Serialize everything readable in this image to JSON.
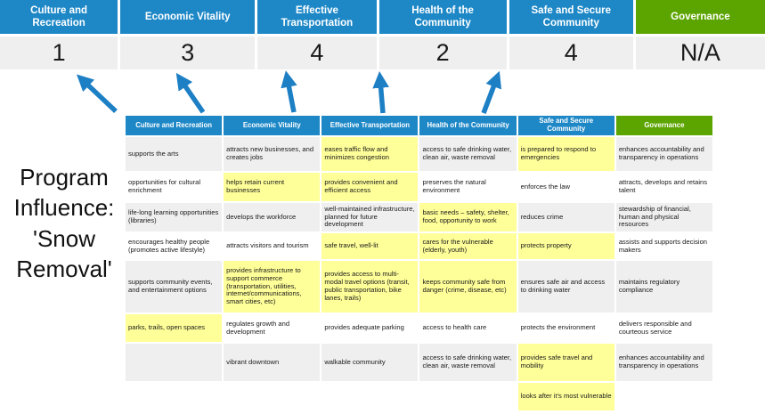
{
  "top_band": {
    "columns": [
      {
        "label": "Culture and Recreation",
        "score": "1",
        "theme": "blue"
      },
      {
        "label": "Economic Vitality",
        "score": "3",
        "theme": "blue"
      },
      {
        "label": "Effective Transportation",
        "score": "4",
        "theme": "blue"
      },
      {
        "label": "Health of the Community",
        "score": "2",
        "theme": "blue"
      },
      {
        "label": "Safe and Secure Community",
        "score": "4",
        "theme": "blue"
      },
      {
        "label": "Governance",
        "score": "N/A",
        "theme": "green"
      }
    ]
  },
  "program_label": "Program Influence: 'Snow Removal'",
  "matrix": {
    "headers": [
      {
        "label": "Culture and Recreation",
        "theme": "blue"
      },
      {
        "label": "Economic Vitality",
        "theme": "blue"
      },
      {
        "label": "Effective Transportation",
        "theme": "blue"
      },
      {
        "label": "Health of the Community",
        "theme": "blue"
      },
      {
        "label": "Safe and Secure Community",
        "theme": "blue"
      },
      {
        "label": "Governance",
        "theme": "green"
      }
    ],
    "rows": [
      [
        {
          "text": "supports the arts",
          "hl": false
        },
        {
          "text": "attracts new businesses, and creates jobs",
          "hl": false
        },
        {
          "text": "eases traffic flow and minimizes congestion",
          "hl": true
        },
        {
          "text": "access to safe drinking water, clean air, waste removal",
          "hl": false
        },
        {
          "text": "is prepared to respond to emergencies",
          "hl": true
        },
        {
          "text": "enhances accountability and transparency in operations",
          "hl": false
        }
      ],
      [
        {
          "text": "opportunities for cultural enrichment",
          "hl": false
        },
        {
          "text": "helps retain current businesses",
          "hl": true
        },
        {
          "text": "provides convenient and efficient access",
          "hl": true
        },
        {
          "text": "preserves the natural environment",
          "hl": false
        },
        {
          "text": "enforces the law",
          "hl": false
        },
        {
          "text": "attracts, develops and retains talent",
          "hl": false
        }
      ],
      [
        {
          "text": "life-long learning opportunities (libraries)",
          "hl": false
        },
        {
          "text": "develops the workforce",
          "hl": false
        },
        {
          "text": "well-maintained infrastructure, planned for future development",
          "hl": false
        },
        {
          "text": "basic needs – safety, shelter, food, opportunity to work",
          "hl": true
        },
        {
          "text": "reduces crime",
          "hl": false
        },
        {
          "text": "stewardship of financial, human and physical resources",
          "hl": false
        }
      ],
      [
        {
          "text": "encourages healthy people (promotes active lifestyle)",
          "hl": false
        },
        {
          "text": "attracts visitors and tourism",
          "hl": false
        },
        {
          "text": "safe travel, well-lit",
          "hl": true
        },
        {
          "text": "cares for the vulnerable (elderly, youth)",
          "hl": true
        },
        {
          "text": "protects property",
          "hl": true
        },
        {
          "text": "assists and supports decision makers",
          "hl": false
        }
      ],
      [
        {
          "text": "supports community events, and entertainment options",
          "hl": false
        },
        {
          "text": "provides infrastructure to support commerce (transportation, utilities, internet/communications, smart cities, etc)",
          "hl": true
        },
        {
          "text": "provides access to multi-modal travel options (transit, public transportation, bike lanes, trails)",
          "hl": true
        },
        {
          "text": "keeps community safe from danger (crime, disease, etc)",
          "hl": true
        },
        {
          "text": "ensures safe air and access to drinking water",
          "hl": false
        },
        {
          "text": "maintains regulatory compliance",
          "hl": false
        }
      ],
      [
        {
          "text": "parks, trails, open spaces",
          "hl": true
        },
        {
          "text": "regulates growth and development",
          "hl": false
        },
        {
          "text": "provides adequate parking",
          "hl": false
        },
        {
          "text": "access to health care",
          "hl": false
        },
        {
          "text": "protects the environment",
          "hl": false
        },
        {
          "text": "delivers responsible and courteous service",
          "hl": false
        }
      ],
      [
        {
          "text": "",
          "hl": false
        },
        {
          "text": "vibrant downtown",
          "hl": false
        },
        {
          "text": "walkable community",
          "hl": false
        },
        {
          "text": "access to safe drinking water, clean air, waste removal",
          "hl": false
        },
        {
          "text": "provides safe travel and mobility",
          "hl": true
        },
        {
          "text": "enhances accountability and transparency in operations",
          "hl": false
        }
      ],
      [
        {
          "text": "",
          "hl": false
        },
        {
          "text": "",
          "hl": false
        },
        {
          "text": "",
          "hl": false
        },
        {
          "text": "",
          "hl": false
        },
        {
          "text": "looks after it's most vulnerable",
          "hl": true
        },
        {
          "text": "",
          "hl": false
        }
      ]
    ]
  },
  "colors": {
    "blue": "#1e88c7",
    "green": "#5ca500",
    "highlight": "#ffff99",
    "stripe": "#efefef",
    "arrow": "#1d7fc4"
  }
}
